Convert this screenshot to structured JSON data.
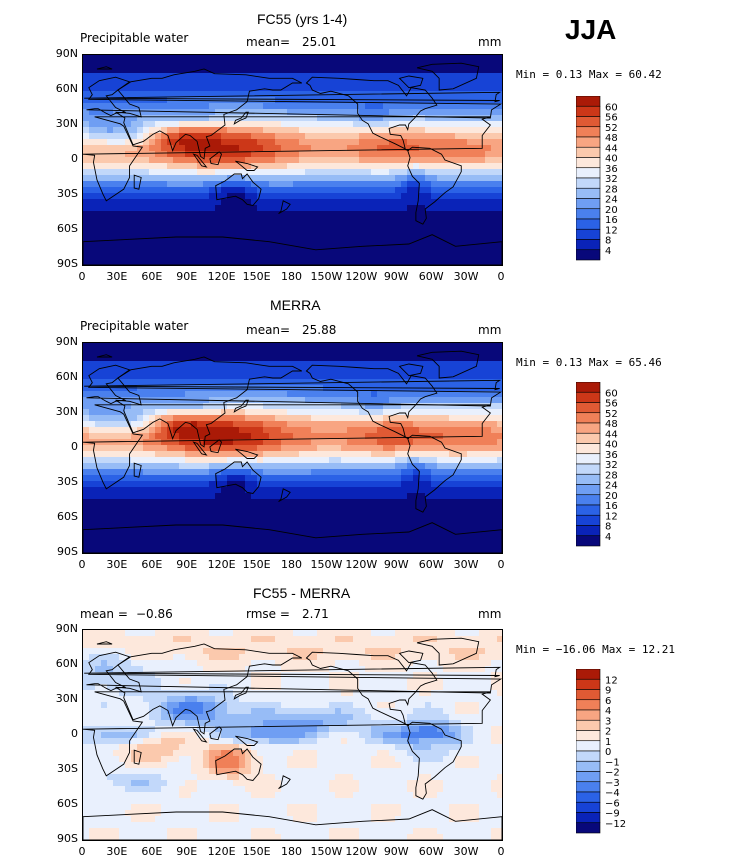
{
  "season": "JJA",
  "colors": {
    "precip_levels": [
      "#08087a",
      "#0a23b8",
      "#1743d6",
      "#2b62e6",
      "#4a80ee",
      "#6f9ef3",
      "#97bcf6",
      "#c2d8fa",
      "#e9f0fd",
      "#fde8dc",
      "#fbc9ad",
      "#f8a582",
      "#f08058",
      "#e05a34",
      "#cc3718",
      "#aa1a07",
      "#7a0500"
    ],
    "diff_levels": [
      "#08087a",
      "#0a23b8",
      "#1743d6",
      "#2b62e6",
      "#4a80ee",
      "#6f9ef3",
      "#97bcf6",
      "#c2d8fa",
      "#e9f0fd",
      "#fde8dc",
      "#fbc9ad",
      "#f8a582",
      "#f08058",
      "#e05a34",
      "#cc3718",
      "#aa1a07",
      "#7a0500"
    ]
  },
  "panels": [
    {
      "title": "FC55 (yrs 1-4)",
      "left_label": "Precipitable water",
      "stat_label": "mean=",
      "stat_value": "25.01",
      "right_label": "mm",
      "minmax": "Min =   0.13 Max =  60.42",
      "colorbar_labels": [
        "60",
        "56",
        "52",
        "48",
        "44",
        "40",
        "36",
        "32",
        "28",
        "24",
        "20",
        "16",
        "12",
        "8",
        "4"
      ]
    },
    {
      "title": "MERRA",
      "left_label": "Precipitable water",
      "stat_label": "mean=",
      "stat_value": "25.88",
      "right_label": "mm",
      "minmax": "Min =   0.13 Max =  65.46",
      "colorbar_labels": [
        "60",
        "56",
        "52",
        "48",
        "44",
        "40",
        "36",
        "32",
        "28",
        "24",
        "20",
        "16",
        "12",
        "8",
        "4"
      ]
    },
    {
      "title": "FC55 - MERRA",
      "left_label": "mean =",
      "left_value": "−0.86",
      "stat_label": "rmse =",
      "stat_value": "2.71",
      "right_label": "mm",
      "minmax": "Min = −16.06 Max =  12.21",
      "colorbar_labels": [
        "12",
        "9",
        "6",
        "4",
        "3",
        "2",
        "1",
        "0",
        "−1",
        "−2",
        "−3",
        "−4",
        "−6",
        "−9",
        "−12"
      ]
    }
  ],
  "axes": {
    "y_ticks": [
      "90N",
      "60N",
      "30N",
      "0",
      "30S",
      "60S",
      "90S"
    ],
    "x_ticks": [
      "0",
      "30E",
      "60E",
      "90E",
      "120E",
      "150E",
      "180",
      "150W",
      "120W",
      "90W",
      "60W",
      "30W",
      "0"
    ]
  },
  "chart_data": [
    {
      "type": "heatmap",
      "title": "FC55 (yrs 1-4)",
      "variable": "Precipitable water",
      "units": "mm",
      "mean": 25.01,
      "min": 0.13,
      "max": 60.42,
      "xlim": [
        0,
        360
      ],
      "ylim": [
        -90,
        90
      ],
      "zonal_profile": {
        "lat": [
          90,
          75,
          60,
          45,
          30,
          15,
          8,
          0,
          -10,
          -20,
          -30,
          -45,
          -60,
          -75,
          -90
        ],
        "value": [
          8,
          10,
          16,
          24,
          34,
          46,
          50,
          44,
          36,
          26,
          18,
          12,
          8,
          4,
          2
        ]
      },
      "levels": [
        4,
        8,
        12,
        16,
        20,
        24,
        28,
        32,
        36,
        40,
        44,
        48,
        52,
        56,
        60
      ]
    },
    {
      "type": "heatmap",
      "title": "MERRA",
      "variable": "Precipitable water",
      "units": "mm",
      "mean": 25.88,
      "min": 0.13,
      "max": 65.46,
      "xlim": [
        0,
        360
      ],
      "ylim": [
        -90,
        90
      ],
      "zonal_profile": {
        "lat": [
          90,
          75,
          60,
          45,
          30,
          15,
          8,
          0,
          -10,
          -20,
          -30,
          -45,
          -60,
          -75,
          -90
        ],
        "value": [
          8,
          10,
          17,
          25,
          36,
          48,
          54,
          46,
          38,
          27,
          19,
          12,
          8,
          4,
          2
        ]
      },
      "levels": [
        4,
        8,
        12,
        16,
        20,
        24,
        28,
        32,
        36,
        40,
        44,
        48,
        52,
        56,
        60
      ]
    },
    {
      "type": "heatmap",
      "title": "FC55 - MERRA",
      "units": "mm",
      "mean": -0.86,
      "rmse": 2.71,
      "min": -16.06,
      "max": 12.21,
      "xlim": [
        0,
        360
      ],
      "ylim": [
        -90,
        90
      ],
      "levels": [
        -12,
        -9,
        -6,
        -4,
        -3,
        -2,
        -1,
        0,
        1,
        2,
        3,
        4,
        6,
        9,
        12
      ]
    }
  ]
}
